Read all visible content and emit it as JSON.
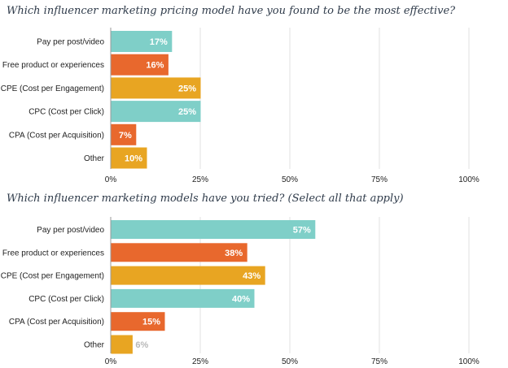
{
  "chart_data": [
    {
      "type": "bar",
      "orientation": "horizontal",
      "title": "Which influencer marketing pricing model have you found to be the most effective?",
      "categories": [
        "Pay per post/video",
        "Free product or experiences",
        "CPE (Cost per Engagement)",
        "CPC (Cost per Click)",
        "CPA (Cost per Acquisition)",
        "Other"
      ],
      "values": [
        17,
        16,
        25,
        25,
        7,
        10
      ],
      "data_labels": [
        "17%",
        "16%",
        "25%",
        "25%",
        "7%",
        "10%"
      ],
      "bar_colors": [
        "#7fcfc8",
        "#e8682d",
        "#e8a522",
        "#7fcfc8",
        "#e8682d",
        "#e8a522"
      ],
      "xlim": [
        0,
        100
      ],
      "x_ticks": [
        "0%",
        "25%",
        "50%",
        "75%",
        "100%"
      ],
      "grid": true
    },
    {
      "type": "bar",
      "orientation": "horizontal",
      "title": "Which influencer marketing models have you tried? (Select all that apply)",
      "categories": [
        "Pay per post/video",
        "Free product or experiences",
        "CPE (Cost per Engagement)",
        "CPC (Cost per Click)",
        "CPA (Cost per Acquisition)",
        "Other"
      ],
      "values": [
        57,
        38,
        43,
        40,
        15,
        6
      ],
      "data_labels": [
        "57%",
        "38%",
        "43%",
        "40%",
        "15%",
        "6%"
      ],
      "bar_colors": [
        "#7fcfc8",
        "#e8682d",
        "#e8a522",
        "#7fcfc8",
        "#e8682d",
        "#e8a522"
      ],
      "xlim": [
        0,
        100
      ],
      "x_ticks": [
        "0%",
        "25%",
        "50%",
        "75%",
        "100%"
      ],
      "grid": true
    }
  ]
}
